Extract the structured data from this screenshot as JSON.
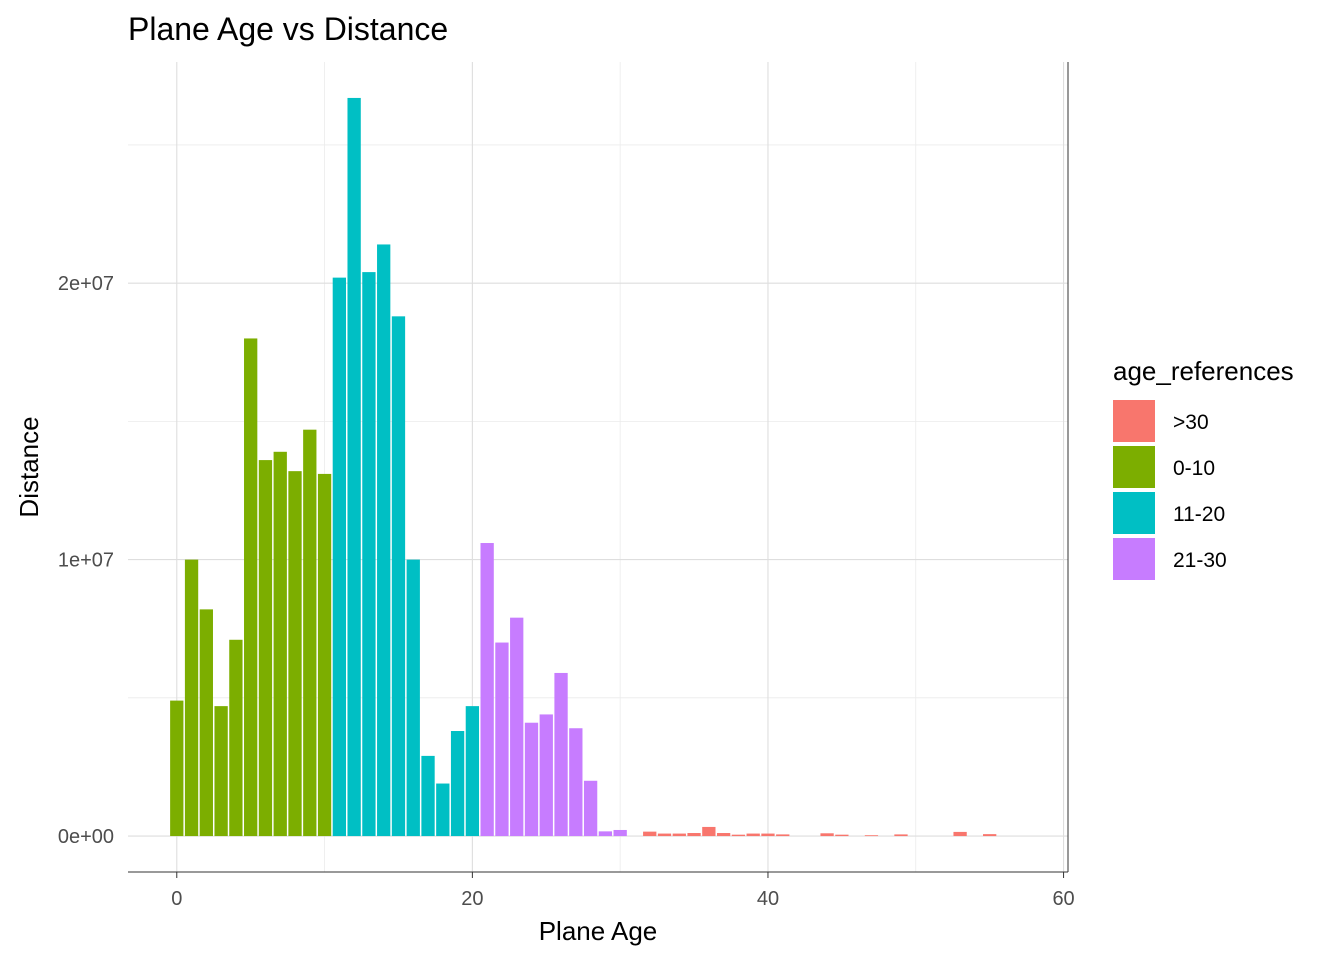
{
  "chart_data": {
    "type": "bar",
    "title": "Plane Age vs Distance",
    "xlabel": "Plane Age",
    "ylabel": "Distance",
    "xlim": [
      -3.3,
      60.3
    ],
    "ylim": [
      -1300000,
      28000000
    ],
    "x_ticks": [
      0,
      20,
      40,
      60
    ],
    "x_tick_labels": [
      "0",
      "20",
      "40",
      "60"
    ],
    "y_ticks": [
      0,
      10000000,
      20000000
    ],
    "y_tick_labels": [
      "0e+00",
      "1e+07",
      "2e+07"
    ],
    "x_minor_ticks": [
      10,
      30,
      50
    ],
    "y_minor_ticks": [
      5000000,
      15000000,
      25000000
    ],
    "grid": true,
    "legend_position": "right",
    "legend": {
      "title": "age_references",
      "entries": [
        {
          "label": ">30",
          "color": "#F8766D"
        },
        {
          "label": "0-10",
          "color": "#7CAE00"
        },
        {
          "label": "11-20",
          "color": "#00BFC4"
        },
        {
          "label": "21-30",
          "color": "#C77CFF"
        }
      ]
    },
    "series": [
      {
        "name": "0-10",
        "color": "#7CAE00",
        "x": [
          0,
          1,
          2,
          3,
          4,
          5,
          6,
          7,
          8,
          9,
          10
        ],
        "values": [
          4900000,
          10000000,
          8200000,
          4700000,
          7100000,
          18000000,
          13600000,
          13900000,
          13200000,
          14700000,
          13100000
        ]
      },
      {
        "name": "11-20",
        "color": "#00BFC4",
        "x": [
          11,
          12,
          13,
          14,
          15,
          16,
          17,
          18,
          19,
          20
        ],
        "values": [
          20200000,
          26700000,
          20400000,
          21400000,
          18800000,
          10000000,
          2900000,
          1900000,
          3800000,
          4700000
        ]
      },
      {
        "name": "21-30",
        "color": "#C77CFF",
        "x": [
          21,
          22,
          23,
          24,
          25,
          26,
          27,
          28,
          29,
          30
        ],
        "values": [
          10600000,
          7000000,
          7900000,
          4100000,
          4400000,
          5900000,
          3900000,
          2000000,
          170000,
          220000
        ]
      },
      {
        "name": ">30",
        "color": "#F8766D",
        "x": [
          32,
          33,
          34,
          35,
          36,
          37,
          38,
          39,
          40,
          41,
          44,
          45,
          47,
          49,
          53,
          55
        ],
        "values": [
          160000,
          90000,
          90000,
          110000,
          330000,
          110000,
          50000,
          90000,
          90000,
          60000,
          100000,
          50000,
          30000,
          60000,
          150000,
          70000
        ]
      }
    ]
  }
}
